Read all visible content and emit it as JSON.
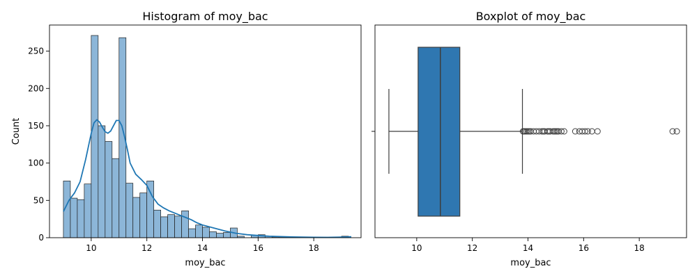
{
  "chart_data": [
    {
      "type": "bar",
      "subtype": "histogram-with-kde",
      "title": "Histogram of moy_bac",
      "xlabel": "moy_bac",
      "ylabel": "Count",
      "xlim": [
        8.5,
        19.7
      ],
      "ylim": [
        0,
        285
      ],
      "xticks": [
        10,
        12,
        14,
        16,
        18
      ],
      "yticks": [
        0,
        50,
        100,
        150,
        200,
        250
      ],
      "grid": false,
      "bin_start": 9.0,
      "bin_width": 0.25,
      "counts": [
        76,
        53,
        51,
        72,
        271,
        150,
        129,
        106,
        268,
        73,
        54,
        60,
        76,
        37,
        28,
        31,
        29,
        36,
        12,
        17,
        14,
        8,
        6,
        7,
        13,
        2,
        0,
        3,
        4,
        2,
        1,
        1,
        1,
        1,
        0,
        0,
        0,
        0,
        0,
        0,
        2
      ],
      "kde": {
        "x": [
          9.0,
          9.2,
          9.4,
          9.6,
          9.8,
          10.0,
          10.1,
          10.2,
          10.3,
          10.4,
          10.5,
          10.6,
          10.7,
          10.8,
          10.9,
          11.0,
          11.1,
          11.2,
          11.3,
          11.4,
          11.6,
          11.8,
          12.0,
          12.2,
          12.4,
          12.6,
          12.8,
          13.0,
          13.2,
          13.4,
          13.6,
          13.8,
          14.0,
          14.4,
          14.8,
          15.2,
          15.6,
          16.0,
          16.4,
          16.8,
          17.2,
          17.6,
          18.0,
          18.5,
          19.0,
          19.35
        ],
        "y": [
          35,
          50,
          60,
          75,
          105,
          140,
          154,
          158,
          155,
          148,
          142,
          140,
          143,
          150,
          157,
          157,
          150,
          135,
          118,
          100,
          85,
          78,
          70,
          55,
          45,
          40,
          36,
          33,
          30,
          27,
          24,
          20,
          17,
          13,
          9,
          6,
          4,
          3,
          2,
          1.5,
          1,
          0.8,
          0.6,
          0.5,
          0.8,
          1.2
        ]
      },
      "colors": {
        "bar": "#8cb6d8",
        "bar_edge": "#1f1f1f",
        "kde": "#1f77b4"
      }
    },
    {
      "type": "boxplot",
      "title": "Boxplot of moy_bac",
      "xlabel": "moy_bac",
      "ylabel": "",
      "xlim": [
        8.5,
        19.7
      ],
      "xticks": [
        10,
        12,
        14,
        16,
        18
      ],
      "grid": false,
      "min": 9.0,
      "q1": 10.05,
      "median": 10.85,
      "q3": 11.55,
      "max": 13.8,
      "outliers": [
        13.82,
        13.86,
        13.9,
        13.95,
        14.0,
        14.05,
        14.1,
        14.2,
        14.3,
        14.4,
        14.5,
        14.55,
        14.6,
        14.7,
        14.75,
        14.8,
        14.9,
        14.95,
        15.0,
        15.05,
        15.1,
        15.2,
        15.3,
        15.7,
        15.85,
        15.95,
        16.05,
        16.15,
        16.3,
        16.5,
        19.2,
        19.35
      ],
      "colors": {
        "box": "#2f77b1",
        "line": "#3d3d3d",
        "outlier_edge": "#3d3d3d"
      }
    }
  ]
}
